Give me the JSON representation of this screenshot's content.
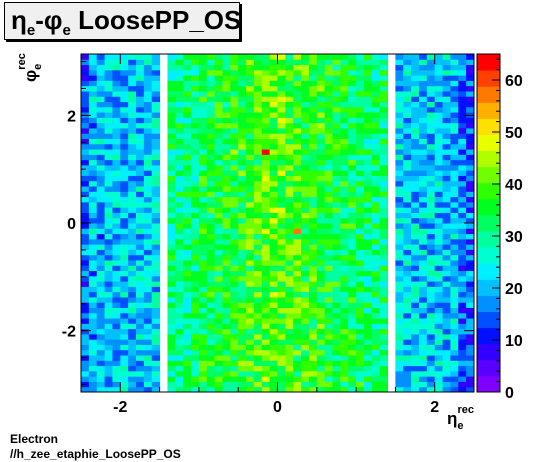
{
  "title": {
    "sym_eta": "η",
    "sub_e1": "e",
    "dash": "-",
    "sym_phi": "φ",
    "sub_e2": "e",
    "rest": " LoosePP_OS"
  },
  "footer": {
    "line1": "Electron",
    "line2": "//h_zee_etaphie_LoosePP_OS"
  },
  "chart_data": {
    "type": "heatmap",
    "xlabel": {
      "symbol": "η",
      "sub": "e",
      "sup": "rec"
    },
    "ylabel": {
      "symbol": "φ",
      "sub": "e",
      "sup": "rec"
    },
    "xlim": [
      -2.5,
      2.5
    ],
    "ylim": [
      -3.14,
      3.14
    ],
    "x_ticks": [
      -2,
      0,
      2
    ],
    "y_ticks": [
      -2,
      0,
      2
    ],
    "x_bins": 50,
    "y_bins": 64,
    "z_range": [
      0,
      65
    ],
    "z_ticks": [
      0,
      10,
      20,
      30,
      40,
      50,
      60
    ],
    "empty_eta_ranges": [
      [
        -1.52,
        -1.37
      ],
      [
        1.37,
        1.52
      ]
    ],
    "typical_counts": {
      "outer_edge": 15,
      "endcap": 20,
      "barrel_edge": 30,
      "barrel_center": 40
    },
    "hot_cells": [
      {
        "x": -0.15,
        "y": 1.35,
        "value": 65
      },
      {
        "x": 0.25,
        "y": -0.15,
        "value": 58
      }
    ],
    "palette": [
      "#7f00ff",
      "#5a00ff",
      "#3300ff",
      "#0010ff",
      "#0050ff",
      "#0090ff",
      "#00c0ff",
      "#00f0ff",
      "#00ffd0",
      "#00ffa0",
      "#00ff60",
      "#00ff20",
      "#30ff00",
      "#70ff00",
      "#b0ff00",
      "#e8ff00",
      "#ffe000",
      "#ffb000",
      "#ff7800",
      "#ff4000",
      "#ff0000"
    ]
  }
}
